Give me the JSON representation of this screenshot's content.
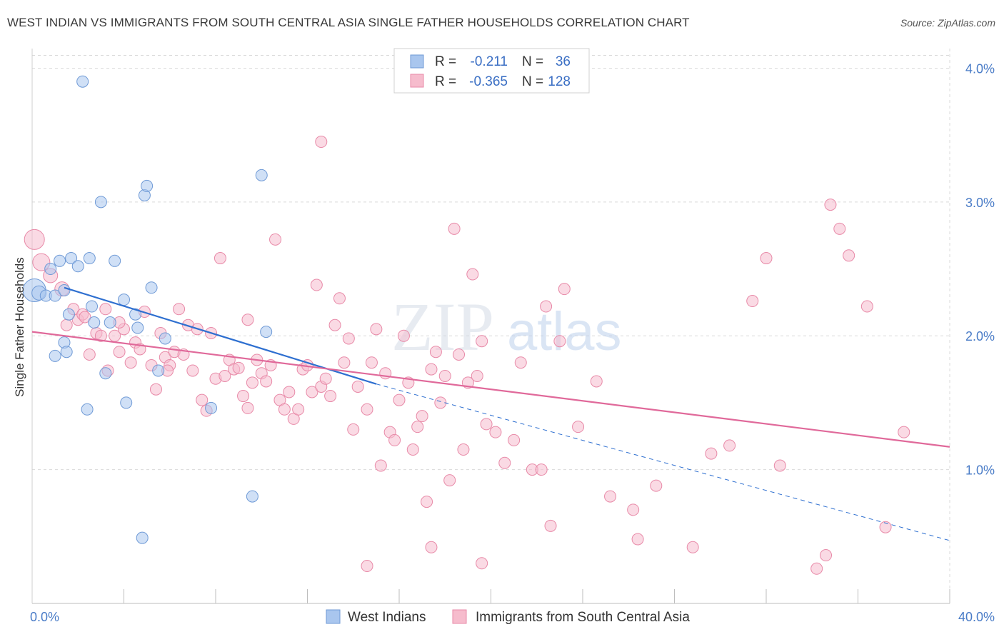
{
  "title": "WEST INDIAN VS IMMIGRANTS FROM SOUTH CENTRAL ASIA SINGLE FATHER HOUSEHOLDS CORRELATION CHART",
  "source": "Source: ZipAtlas.com",
  "watermark": {
    "part1": "ZIP",
    "part2": "atlas"
  },
  "colors": {
    "blue_fill": "#a9c6ee",
    "blue_stroke": "#6f9ad6",
    "blue_line": "#2e6fd0",
    "pink_fill": "#f6bccd",
    "pink_stroke": "#e88aa8",
    "pink_line": "#e0699a",
    "grid": "#d9d9d9",
    "axis_text": "#4a7cc7"
  },
  "legend": {
    "rows": [
      {
        "r_label": "R =",
        "r_value": "-0.211",
        "n_label": "N =",
        "n_value": "36"
      },
      {
        "r_label": "R =",
        "r_value": "-0.365",
        "n_label": "N =",
        "n_value": "128"
      }
    ]
  },
  "chart_data": {
    "type": "scatter",
    "title": "WEST INDIAN VS IMMIGRANTS FROM SOUTH CENTRAL ASIA SINGLE FATHER HOUSEHOLDS CORRELATION CHART",
    "xlabel": "",
    "ylabel": "Single Father Households",
    "xlim": [
      0,
      40
    ],
    "ylim": [
      0,
      4.2
    ],
    "x_tick_labels": [
      "0.0%",
      "40.0%"
    ],
    "y_ticks": [
      1.0,
      2.0,
      3.0,
      4.0
    ],
    "y_tick_labels": [
      "1.0%",
      "2.0%",
      "3.0%",
      "4.0%"
    ],
    "grid": true,
    "legend_position": "top-center",
    "series": [
      {
        "name": "West Indians",
        "trend": {
          "x0": 1.4,
          "y0": 2.36,
          "x1": 15.0,
          "y1": 1.64,
          "dash_x1": 40.0,
          "dash_y1": 0.47
        },
        "points": [
          [
            0.1,
            2.34,
            16
          ],
          [
            0.3,
            2.32,
            10
          ],
          [
            0.6,
            2.3,
            8
          ],
          [
            0.8,
            2.5,
            8
          ],
          [
            1.0,
            2.3,
            8
          ],
          [
            1.2,
            2.56,
            8
          ],
          [
            1.4,
            2.34,
            8
          ],
          [
            1.4,
            1.95,
            8
          ],
          [
            1.5,
            1.88,
            8
          ],
          [
            1.6,
            2.16,
            8
          ],
          [
            1.7,
            2.58,
            8
          ],
          [
            2.0,
            2.52,
            8
          ],
          [
            2.2,
            3.9,
            8
          ],
          [
            2.5,
            2.58,
            8
          ],
          [
            2.6,
            2.22,
            8
          ],
          [
            2.7,
            2.1,
            8
          ],
          [
            3.0,
            3.0,
            8
          ],
          [
            3.2,
            1.72,
            8
          ],
          [
            3.4,
            2.1,
            8
          ],
          [
            3.6,
            2.56,
            8
          ],
          [
            4.0,
            2.27,
            8
          ],
          [
            4.1,
            1.5,
            8
          ],
          [
            4.5,
            2.16,
            8
          ],
          [
            4.6,
            2.06,
            8
          ],
          [
            4.9,
            3.05,
            8
          ],
          [
            5.0,
            3.12,
            8
          ],
          [
            5.2,
            2.36,
            8
          ],
          [
            5.5,
            1.74,
            8
          ],
          [
            5.8,
            1.98,
            8
          ],
          [
            7.8,
            1.46,
            8
          ],
          [
            9.6,
            0.8,
            8
          ],
          [
            10.0,
            3.2,
            8
          ],
          [
            10.2,
            2.03,
            8
          ],
          [
            4.8,
            0.49,
            8
          ],
          [
            1.0,
            1.85,
            8
          ],
          [
            2.4,
            1.45,
            8
          ]
        ]
      },
      {
        "name": "Immigrants from South Central Asia",
        "trend": {
          "x0": 0.0,
          "y0": 2.03,
          "x1": 40.0,
          "y1": 1.17
        },
        "points": [
          [
            0.1,
            2.72,
            14
          ],
          [
            0.4,
            2.55,
            12
          ],
          [
            0.8,
            2.45,
            10
          ],
          [
            1.3,
            2.35,
            10
          ],
          [
            1.5,
            2.08,
            8
          ],
          [
            1.8,
            2.2,
            8
          ],
          [
            2.0,
            2.12,
            8
          ],
          [
            2.2,
            2.16,
            8
          ],
          [
            2.5,
            1.86,
            8
          ],
          [
            2.8,
            2.02,
            8
          ],
          [
            3.0,
            2.0,
            8
          ],
          [
            3.3,
            1.74,
            8
          ],
          [
            3.6,
            2.0,
            8
          ],
          [
            3.8,
            1.88,
            8
          ],
          [
            4.0,
            2.05,
            8
          ],
          [
            4.3,
            1.8,
            8
          ],
          [
            4.5,
            1.95,
            8
          ],
          [
            4.7,
            1.9,
            8
          ],
          [
            4.9,
            2.18,
            8
          ],
          [
            5.2,
            1.78,
            8
          ],
          [
            5.4,
            1.6,
            8
          ],
          [
            5.6,
            2.02,
            8
          ],
          [
            5.8,
            1.84,
            8
          ],
          [
            6.0,
            1.78,
            8
          ],
          [
            6.2,
            1.88,
            8
          ],
          [
            6.4,
            2.2,
            8
          ],
          [
            6.8,
            2.08,
            8
          ],
          [
            7.0,
            1.74,
            8
          ],
          [
            7.2,
            2.05,
            8
          ],
          [
            7.4,
            1.52,
            8
          ],
          [
            7.6,
            1.44,
            8
          ],
          [
            7.8,
            2.02,
            8
          ],
          [
            8.0,
            1.68,
            8
          ],
          [
            8.2,
            2.58,
            8
          ],
          [
            8.4,
            1.7,
            8
          ],
          [
            8.6,
            1.82,
            8
          ],
          [
            8.8,
            1.75,
            8
          ],
          [
            9.0,
            1.76,
            8
          ],
          [
            9.2,
            1.55,
            8
          ],
          [
            9.4,
            1.46,
            8
          ],
          [
            9.6,
            1.65,
            8
          ],
          [
            9.8,
            1.82,
            8
          ],
          [
            10.0,
            1.72,
            8
          ],
          [
            10.2,
            1.66,
            8
          ],
          [
            10.4,
            1.78,
            8
          ],
          [
            10.6,
            2.72,
            8
          ],
          [
            10.8,
            1.52,
            8
          ],
          [
            11.0,
            1.45,
            8
          ],
          [
            11.2,
            1.58,
            8
          ],
          [
            11.4,
            1.38,
            8
          ],
          [
            11.6,
            1.45,
            8
          ],
          [
            11.8,
            1.75,
            8
          ],
          [
            12.0,
            1.78,
            8
          ],
          [
            12.2,
            1.58,
            8
          ],
          [
            12.4,
            2.38,
            8
          ],
          [
            12.6,
            1.62,
            8
          ],
          [
            12.8,
            1.68,
            8
          ],
          [
            13.0,
            1.55,
            8
          ],
          [
            13.2,
            2.08,
            8
          ],
          [
            13.4,
            2.28,
            8
          ],
          [
            13.6,
            1.8,
            8
          ],
          [
            13.8,
            1.98,
            8
          ],
          [
            14.0,
            1.3,
            8
          ],
          [
            14.2,
            1.62,
            8
          ],
          [
            14.6,
            1.45,
            8
          ],
          [
            14.8,
            1.8,
            8
          ],
          [
            15.0,
            2.05,
            8
          ],
          [
            15.2,
            1.03,
            8
          ],
          [
            15.4,
            1.72,
            8
          ],
          [
            15.6,
            1.28,
            8
          ],
          [
            15.8,
            1.22,
            8
          ],
          [
            16.0,
            1.52,
            8
          ],
          [
            16.2,
            2.0,
            8
          ],
          [
            16.4,
            1.65,
            8
          ],
          [
            16.6,
            1.15,
            8
          ],
          [
            16.8,
            1.32,
            8
          ],
          [
            17.0,
            1.4,
            8
          ],
          [
            17.2,
            0.76,
            8
          ],
          [
            17.4,
            1.75,
            8
          ],
          [
            17.6,
            1.88,
            8
          ],
          [
            17.8,
            1.5,
            8
          ],
          [
            18.0,
            1.7,
            8
          ],
          [
            18.2,
            0.92,
            8
          ],
          [
            18.4,
            2.8,
            8
          ],
          [
            18.6,
            1.86,
            8
          ],
          [
            18.8,
            1.15,
            8
          ],
          [
            19.0,
            1.65,
            8
          ],
          [
            19.2,
            2.46,
            8
          ],
          [
            19.4,
            1.7,
            8
          ],
          [
            19.6,
            1.96,
            8
          ],
          [
            19.8,
            1.34,
            8
          ],
          [
            20.2,
            1.28,
            8
          ],
          [
            20.6,
            1.05,
            8
          ],
          [
            21.0,
            1.22,
            8
          ],
          [
            21.3,
            1.8,
            8
          ],
          [
            21.8,
            1.0,
            8
          ],
          [
            22.2,
            1.0,
            8
          ],
          [
            22.4,
            2.22,
            8
          ],
          [
            22.6,
            0.58,
            8
          ],
          [
            23.0,
            1.96,
            8
          ],
          [
            23.2,
            2.35,
            8
          ],
          [
            23.8,
            1.32,
            8
          ],
          [
            24.6,
            1.66,
            8
          ],
          [
            25.2,
            0.8,
            8
          ],
          [
            26.2,
            0.7,
            8
          ],
          [
            26.4,
            0.48,
            8
          ],
          [
            27.2,
            0.88,
            8
          ],
          [
            28.8,
            0.42,
            8
          ],
          [
            29.6,
            1.12,
            8
          ],
          [
            30.4,
            1.18,
            8
          ],
          [
            31.4,
            2.26,
            8
          ],
          [
            32.0,
            2.58,
            8
          ],
          [
            32.6,
            1.03,
            8
          ],
          [
            34.2,
            0.26,
            8
          ],
          [
            34.6,
            0.36,
            8
          ],
          [
            34.8,
            2.98,
            8
          ],
          [
            35.2,
            2.8,
            8
          ],
          [
            35.6,
            2.6,
            8
          ],
          [
            36.4,
            2.22,
            8
          ],
          [
            37.2,
            0.57,
            8
          ],
          [
            38.0,
            1.28,
            8
          ],
          [
            17.4,
            0.42,
            8
          ],
          [
            19.6,
            0.3,
            8
          ],
          [
            14.6,
            0.28,
            8
          ],
          [
            12.6,
            3.45,
            8
          ],
          [
            6.6,
            1.86,
            8
          ],
          [
            3.2,
            2.2,
            8
          ],
          [
            2.3,
            2.14,
            8
          ],
          [
            3.8,
            2.1,
            8
          ],
          [
            5.9,
            1.74,
            8
          ],
          [
            9.4,
            2.12,
            8
          ]
        ]
      }
    ]
  }
}
